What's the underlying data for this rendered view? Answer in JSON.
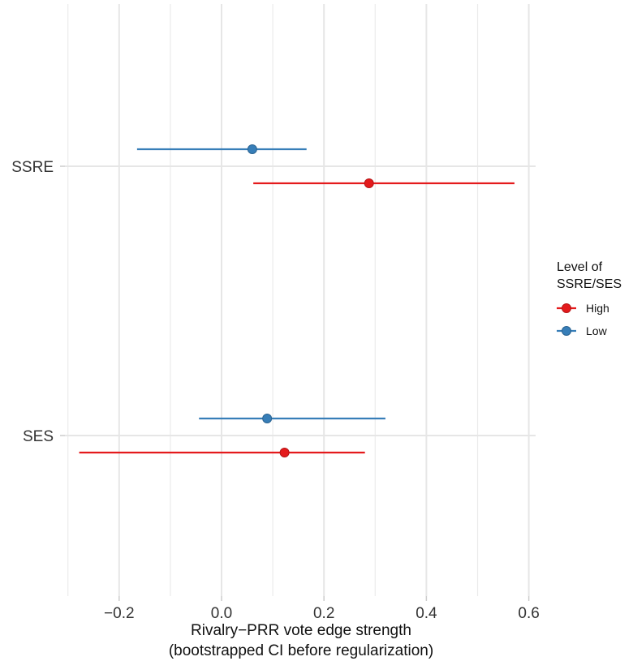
{
  "chart_data": {
    "type": "dot-interval",
    "xlabel_line1": "Rivalry−PRR vote edge strength",
    "xlabel_line2": "(bootstrapped CI before regularization)",
    "xlim": [
      -0.31,
      0.61
    ],
    "x_ticks": [
      -0.2,
      0.0,
      0.2,
      0.4,
      0.6
    ],
    "x_tick_labels": [
      "−0.2",
      "0.0",
      "0.2",
      "0.4",
      "0.6"
    ],
    "categories": [
      "SSRE",
      "SES"
    ],
    "legend": {
      "title_line1": "Level of",
      "title_line2": "SSRE/SES",
      "position": "right"
    },
    "series": [
      {
        "name": "High",
        "color": "#e41a1c",
        "points": [
          {
            "category": "SSRE",
            "estimate": 0.288,
            "lower": 0.062,
            "upper": 0.572
          },
          {
            "category": "SES",
            "estimate": 0.123,
            "lower": -0.278,
            "upper": 0.28
          }
        ]
      },
      {
        "name": "Low",
        "color": "#377eb8",
        "points": [
          {
            "category": "SSRE",
            "estimate": 0.06,
            "lower": -0.165,
            "upper": 0.166
          },
          {
            "category": "SES",
            "estimate": 0.089,
            "lower": -0.044,
            "upper": 0.32
          }
        ]
      }
    ]
  }
}
